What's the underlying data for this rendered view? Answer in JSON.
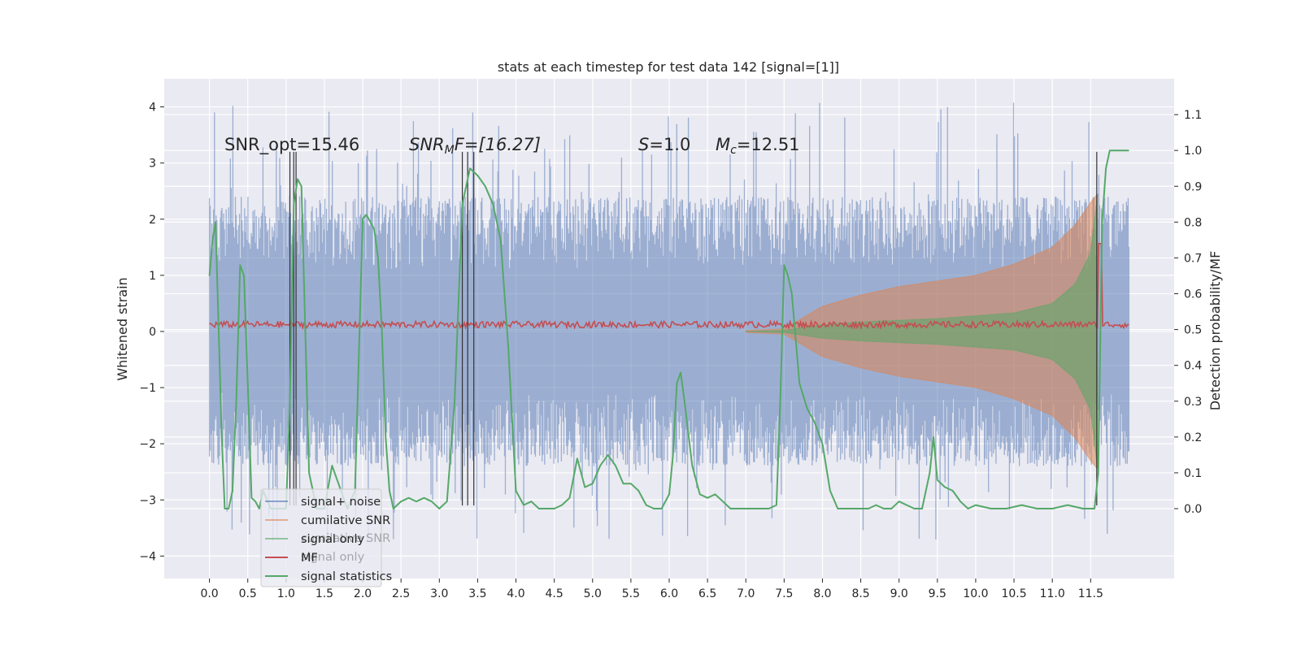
{
  "chart_data": {
    "type": "line",
    "title": "stats at each timestep for test data 142 [signal=[1]]",
    "xlabel": "",
    "ylabel_left": "Whitened strain",
    "ylabel_right": "Detection probability/MF",
    "xlim": [
      -0.59,
      12.59
    ],
    "ylim_left": [
      -4.4,
      4.5
    ],
    "ylim_right": [
      -0.195,
      1.2
    ],
    "x_ticks": [
      0.0,
      0.5,
      1.0,
      1.5,
      2.0,
      2.5,
      3.0,
      3.5,
      4.0,
      4.5,
      5.0,
      5.5,
      6.0,
      6.5,
      7.0,
      7.5,
      8.0,
      8.5,
      9.0,
      9.5,
      10.0,
      10.5,
      11.0,
      11.5
    ],
    "x_tick_labels": [
      "0.0",
      "0.5",
      "1.0",
      "1.5",
      "2.0",
      "2.5",
      "3.0",
      "3.5",
      "4.0",
      "4.5",
      "5.0",
      "5.5",
      "6.0",
      "6.5",
      "7.0",
      "7.5",
      "8.0",
      "8.5",
      "9.0",
      "9.5",
      "10.0",
      "10.5",
      "11.0",
      "11.5"
    ],
    "y_left_ticks": [
      -4,
      -3,
      -2,
      -1,
      0,
      1,
      2,
      3,
      4
    ],
    "y_left_tick_labels": [
      "−4",
      "−3",
      "−2",
      "−1",
      "0",
      "1",
      "2",
      "3",
      "4"
    ],
    "y_right_ticks": [
      0.0,
      0.1,
      0.2,
      0.3,
      0.4,
      0.5,
      0.6,
      0.7,
      0.8,
      0.9,
      1.0,
      1.1
    ],
    "y_right_tick_labels": [
      "0.0",
      "0.1",
      "0.2",
      "0.3",
      "0.4",
      "0.5",
      "0.6",
      "0.7",
      "0.8",
      "0.9",
      "1.0",
      "1.1"
    ],
    "grid": true,
    "legend_position": "lower left",
    "legend_entries": [
      {
        "label": "signal+ noise",
        "color": "#4c72b0"
      },
      {
        "label": "cumilative SNR",
        "color": "#dd8452"
      },
      {
        "label": "signal only",
        "color": "#55a868"
      },
      {
        "label": "MF",
        "color": "#c44e52"
      },
      {
        "label": "signal statistics",
        "color": "#55a868"
      }
    ],
    "legend_ghost_entries": [
      "cumilative SNR",
      "signal only"
    ],
    "annotations": {
      "snr_opt": "SNR_opt=15.46",
      "snr_mf_symbol": "SNR",
      "snr_mf_sub": "M",
      "snr_mf_rest": "F=[16.27]",
      "s_symbol": "S",
      "s_rest": "=1.0",
      "mc_symbol": "M",
      "mc_sub": "c",
      "mc_rest": "=12.51"
    },
    "colors": {
      "background": "#eaeaf2",
      "grid": "#ffffff",
      "noise": "#4c72b0",
      "cumulative": "#dd8452",
      "signal": "#55a868",
      "mf": "#c44e52",
      "stat": "#55a868",
      "marker_lines": "#333333"
    },
    "series": [
      {
        "name": "signal statistics",
        "axis": "right",
        "x": [
          0.0,
          0.04,
          0.08,
          0.12,
          0.16,
          0.2,
          0.25,
          0.3,
          0.35,
          0.4,
          0.45,
          0.5,
          0.55,
          0.6,
          0.65,
          0.7,
          0.8,
          0.9,
          1.0,
          1.05,
          1.1,
          1.15,
          1.2,
          1.25,
          1.3,
          1.35,
          1.4,
          1.5,
          1.6,
          1.7,
          1.8,
          1.9,
          2.0,
          2.05,
          2.1,
          2.15,
          2.2,
          2.25,
          2.3,
          2.35,
          2.4,
          2.5,
          2.6,
          2.7,
          2.8,
          2.9,
          3.0,
          3.1,
          3.2,
          3.3,
          3.4,
          3.5,
          3.6,
          3.7,
          3.8,
          3.9,
          4.0,
          4.1,
          4.2,
          4.3,
          4.4,
          4.5,
          4.6,
          4.7,
          4.8,
          4.9,
          5.0,
          5.1,
          5.2,
          5.3,
          5.4,
          5.5,
          5.6,
          5.7,
          5.8,
          5.9,
          6.0,
          6.05,
          6.1,
          6.15,
          6.2,
          6.3,
          6.4,
          6.5,
          6.6,
          6.7,
          6.8,
          6.9,
          7.0,
          7.1,
          7.2,
          7.3,
          7.4,
          7.45,
          7.5,
          7.55,
          7.6,
          7.7,
          7.8,
          7.9,
          8.0,
          8.1,
          8.2,
          8.3,
          8.4,
          8.5,
          8.6,
          8.7,
          8.8,
          8.9,
          9.0,
          9.1,
          9.2,
          9.3,
          9.4,
          9.45,
          9.5,
          9.6,
          9.7,
          9.8,
          9.9,
          10.0,
          10.2,
          10.4,
          10.6,
          10.8,
          11.0,
          11.2,
          11.4,
          11.5,
          11.55,
          11.6,
          11.65,
          11.7,
          11.75,
          11.8,
          11.9,
          12.0
        ],
        "values": [
          0.65,
          0.75,
          0.8,
          0.5,
          0.2,
          0.0,
          0.0,
          0.05,
          0.3,
          0.68,
          0.65,
          0.35,
          0.03,
          0.02,
          0.0,
          0.05,
          0.0,
          0.0,
          0.0,
          0.3,
          0.85,
          0.92,
          0.9,
          0.5,
          0.1,
          0.05,
          0.0,
          0.0,
          0.12,
          0.06,
          0.0,
          0.05,
          0.81,
          0.82,
          0.8,
          0.78,
          0.7,
          0.5,
          0.2,
          0.05,
          0.0,
          0.02,
          0.03,
          0.02,
          0.03,
          0.02,
          0.0,
          0.02,
          0.3,
          0.85,
          0.95,
          0.93,
          0.9,
          0.85,
          0.75,
          0.45,
          0.05,
          0.01,
          0.02,
          0.0,
          0.0,
          0.0,
          0.01,
          0.03,
          0.14,
          0.06,
          0.07,
          0.12,
          0.15,
          0.12,
          0.07,
          0.07,
          0.05,
          0.01,
          0.0,
          0.0,
          0.04,
          0.15,
          0.35,
          0.38,
          0.3,
          0.12,
          0.04,
          0.03,
          0.04,
          0.02,
          0.0,
          0.0,
          0.0,
          0.0,
          0.0,
          0.0,
          0.01,
          0.3,
          0.68,
          0.65,
          0.6,
          0.35,
          0.28,
          0.24,
          0.18,
          0.05,
          0.0,
          0.0,
          0.0,
          0.0,
          0.0,
          0.01,
          0.0,
          0.0,
          0.02,
          0.01,
          0.0,
          0.0,
          0.1,
          0.2,
          0.08,
          0.06,
          0.05,
          0.02,
          0.0,
          0.01,
          0.0,
          0.0,
          0.01,
          0.0,
          0.0,
          0.01,
          0.0,
          0.0,
          0.0,
          0.1,
          0.8,
          0.95,
          1.0,
          1.0,
          1.0,
          1.0
        ]
      },
      {
        "name": "cumilative SNR",
        "axis": "left",
        "envelope_x": [
          7.0,
          7.5,
          8.0,
          8.5,
          9.0,
          9.5,
          10.0,
          10.5,
          11.0,
          11.3,
          11.5,
          11.59
        ],
        "envelope_amplitude": [
          0.02,
          0.05,
          0.45,
          0.65,
          0.8,
          0.9,
          1.0,
          1.2,
          1.5,
          1.9,
          2.3,
          2.45
        ]
      },
      {
        "name": "signal only",
        "axis": "left",
        "envelope_x": [
          7.0,
          7.5,
          8.0,
          8.5,
          9.0,
          9.5,
          10.0,
          10.5,
          11.0,
          11.3,
          11.5,
          11.59
        ],
        "envelope_amplitude": [
          0.0,
          0.02,
          0.12,
          0.17,
          0.2,
          0.23,
          0.28,
          0.33,
          0.5,
          0.85,
          1.4,
          2.45
        ]
      },
      {
        "name": "MF",
        "axis": "right",
        "level": 0.5,
        "spike_x": 11.63,
        "spike_value": 0.74
      },
      {
        "name": "signal+ noise",
        "axis": "left",
        "x_range": [
          0.0,
          12.0
        ],
        "typical_range": [
          -2.4,
          2.4
        ],
        "peak_max": 4.1,
        "peak_min": -3.75
      }
    ],
    "vertical_markers": {
      "axis_range": [
        -3.1,
        3.2
      ],
      "x": [
        1.05,
        1.1,
        1.13,
        3.3,
        3.37,
        3.45,
        11.58
      ]
    }
  }
}
